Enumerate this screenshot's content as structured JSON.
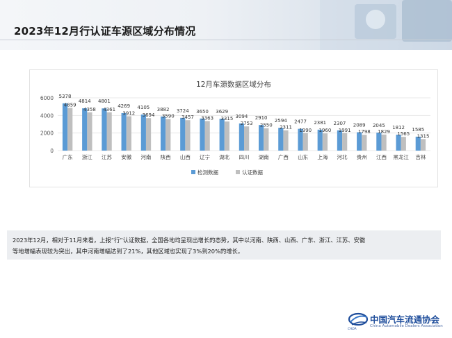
{
  "header": {
    "title": "2023年12月行认证车源区域分布情况"
  },
  "chart_data": {
    "type": "bar",
    "title": "12月车源数据区域分布",
    "categories": [
      "广东",
      "浙江",
      "江苏",
      "安徽",
      "河南",
      "陕西",
      "山西",
      "辽宁",
      "湖北",
      "四川",
      "湖南",
      "广西",
      "山东",
      "上海",
      "河北",
      "贵州",
      "江西",
      "黑龙江",
      "吉林"
    ],
    "series": [
      {
        "name": "检测数据",
        "color": "#5b9bd5",
        "values": [
          5378,
          4814,
          4801,
          4269,
          4105,
          3882,
          3724,
          3650,
          3629,
          3094,
          2910,
          2594,
          2477,
          2381,
          2307,
          2089,
          2045,
          1812,
          1585
        ]
      },
      {
        "name": "认证数据",
        "color": "#bfbfbf",
        "values": [
          4859,
          4358,
          4361,
          3912,
          3694,
          3590,
          3457,
          3363,
          3315,
          2753,
          2550,
          2311,
          1990,
          1960,
          1991,
          1798,
          1829,
          1565,
          1315
        ]
      }
    ],
    "yticks": [
      0,
      2000,
      4000,
      6000
    ],
    "ylim": [
      0,
      6000
    ],
    "legend": "bottom",
    "grid": true
  },
  "summary": {
    "line1": "2023年12月，相对于11月来看，上报“行”认证数据，全国各地均呈现出增长的态势，其中以河南、陕西、山西、广东、浙江、江苏、安徽",
    "line2": "等地增幅表现较为突出，其中河南增幅达到了21%，其他区域也实现了3%到20%的增长。"
  },
  "footer": {
    "org_name_cn": "中国汽车流通协会",
    "org_name_en": "China Automobile Dealers Association",
    "logo_text": "CADA"
  }
}
